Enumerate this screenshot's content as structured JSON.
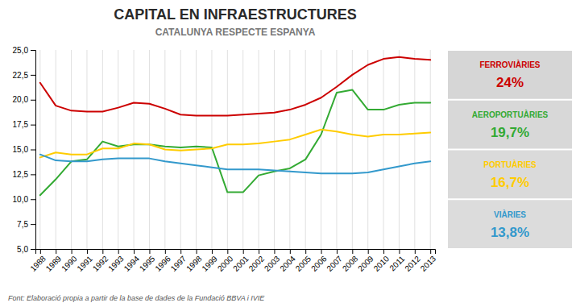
{
  "chart_data": {
    "type": "line",
    "title": "CAPITAL EN INFRAESTRUCTURES",
    "subtitle": "CATALUNYA  RESPECTE  ESPANYA",
    "annotations": [
      "Font: Elaboració propia a partir de la base de dades de la Fundació BBVA i IVIE"
    ],
    "x": [
      1988,
      1989,
      1990,
      1991,
      1992,
      1993,
      1994,
      1995,
      1996,
      1997,
      1998,
      1999,
      2000,
      2001,
      2002,
      2003,
      2004,
      2005,
      2006,
      2007,
      2008,
      2009,
      2010,
      2011,
      2012,
      2013
    ],
    "series": [
      {
        "name": "FERROVIÀRIES",
        "color": "#cc0000",
        "legend_label": "24%",
        "values": [
          21.7,
          19.4,
          18.9,
          18.8,
          18.8,
          19.2,
          19.7,
          19.6,
          19.1,
          18.5,
          18.4,
          18.4,
          18.4,
          18.5,
          18.6,
          18.7,
          19.0,
          19.5,
          20.2,
          21.3,
          22.5,
          23.5,
          24.1,
          24.3,
          24.1,
          24.0
        ]
      },
      {
        "name": "AEROPORTUÀRIES",
        "color": "#33aa33",
        "legend_label": "19,7%",
        "values": [
          10.4,
          12.0,
          13.8,
          14.0,
          15.8,
          15.3,
          15.5,
          15.5,
          15.3,
          15.2,
          15.3,
          15.2,
          10.7,
          10.7,
          12.4,
          12.8,
          13.1,
          14.0,
          16.5,
          20.7,
          21.0,
          19.0,
          19.0,
          19.5,
          19.7,
          19.7
        ]
      },
      {
        "name": "PORTUÀRIES",
        "color": "#ffcc00",
        "legend_label": "16,7%",
        "values": [
          14.2,
          14.7,
          14.5,
          14.5,
          15.1,
          15.1,
          15.6,
          15.5,
          15.0,
          14.9,
          15.0,
          15.1,
          15.5,
          15.5,
          15.6,
          15.8,
          16.0,
          16.5,
          17.0,
          16.8,
          16.5,
          16.3,
          16.5,
          16.5,
          16.6,
          16.7
        ]
      },
      {
        "name": "VIÀRIES",
        "color": "#3399cc",
        "legend_label": "13,8%",
        "values": [
          14.5,
          13.9,
          13.8,
          13.8,
          14.0,
          14.1,
          14.1,
          14.1,
          13.8,
          13.6,
          13.4,
          13.2,
          13.0,
          13.0,
          13.0,
          12.9,
          12.8,
          12.7,
          12.6,
          12.6,
          12.6,
          12.7,
          13.0,
          13.3,
          13.6,
          13.8
        ]
      }
    ],
    "xlim": [
      1987.7,
      2013.3
    ],
    "xticks": [
      1988,
      1989,
      1990,
      1991,
      1992,
      1993,
      1994,
      1995,
      1996,
      1997,
      1998,
      1999,
      2000,
      2001,
      2002,
      2003,
      2004,
      2005,
      2006,
      2007,
      2008,
      2009,
      2010,
      2011,
      2012,
      2013
    ],
    "ylim": [
      5.0,
      25.0
    ],
    "yticks": [
      {
        "value": 5.0,
        "label": "5,0"
      },
      {
        "value": 7.5,
        "label": "7,5"
      },
      {
        "value": 10.0,
        "label": "10,0"
      },
      {
        "value": 12.5,
        "label": "12,5"
      },
      {
        "value": 15.0,
        "label": "15,0"
      },
      {
        "value": 17.5,
        "label": "17,5"
      },
      {
        "value": 20.0,
        "label": "20,0"
      },
      {
        "value": 22.5,
        "label": "22,5"
      },
      {
        "value": 25.0,
        "label": "25,0"
      }
    ],
    "grid": true
  }
}
